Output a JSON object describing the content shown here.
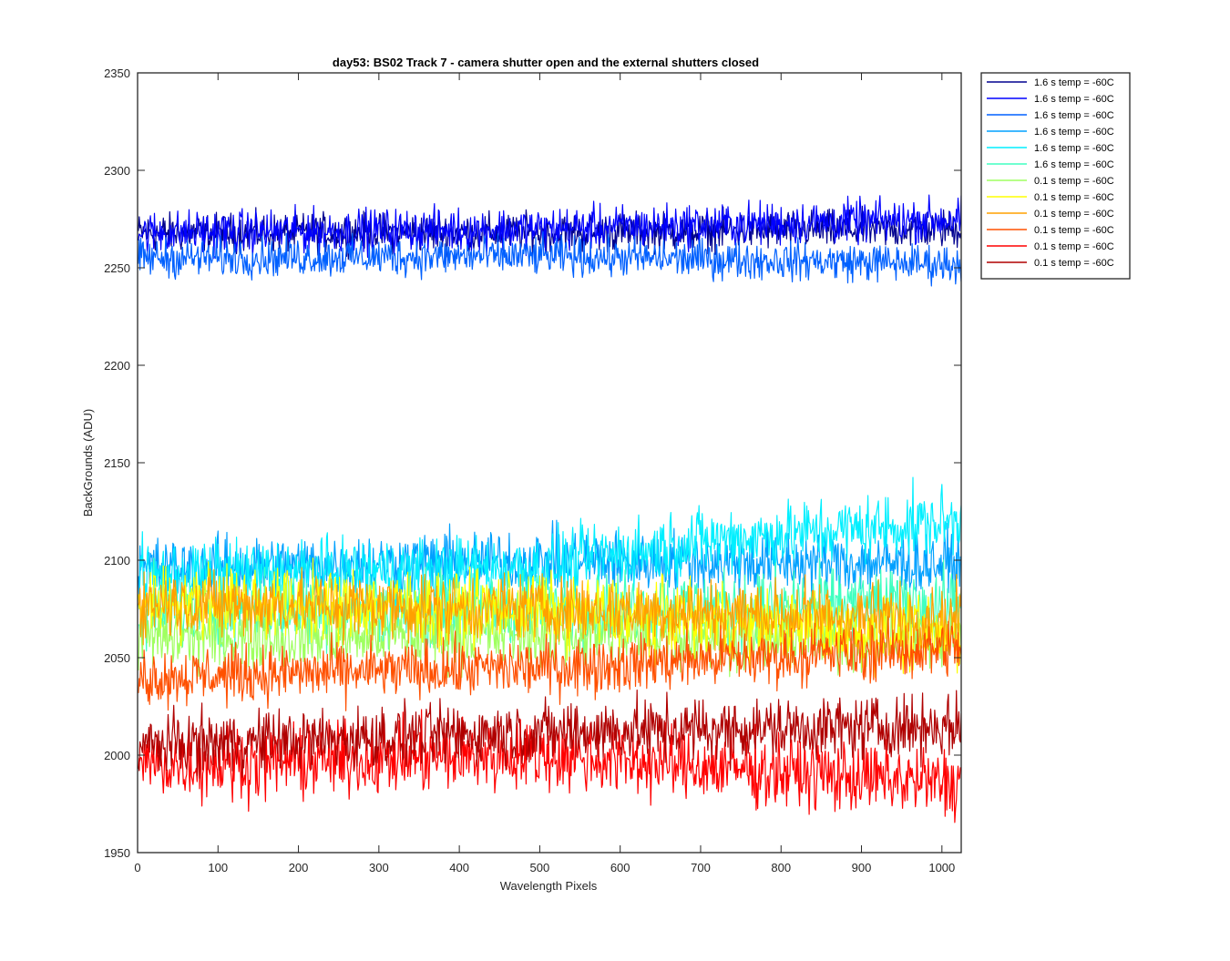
{
  "chart_data": {
    "type": "line",
    "title": "day53: BS02  Track 7 - camera shutter open and the external shutters closed",
    "xlabel": "Wavelength Pixels",
    "ylabel": "BackGrounds (ADU)",
    "xlim": [
      0,
      1024
    ],
    "ylim": [
      1950,
      2350
    ],
    "xticks": [
      0,
      100,
      200,
      300,
      400,
      500,
      600,
      700,
      800,
      900,
      1000
    ],
    "yticks": [
      1950,
      2000,
      2050,
      2100,
      2150,
      2200,
      2250,
      2300,
      2350
    ],
    "grid": false,
    "legend_position": "outside-right-top",
    "x": "pixel index 1..1024",
    "series": [
      {
        "name": "1.6 s temp = -60C",
        "color": "#00008F",
        "baseline": [
          [
            0,
            2268
          ],
          [
            500,
            2268
          ],
          [
            1024,
            2270
          ]
        ],
        "noise_amplitude": 8
      },
      {
        "name": "1.6 s temp = -60C",
        "color": "#0000FF",
        "baseline": [
          [
            0,
            2268
          ],
          [
            500,
            2270
          ],
          [
            1024,
            2275
          ]
        ],
        "noise_amplitude": 9
      },
      {
        "name": "1.6 s temp = -60C",
        "color": "#0060FF",
        "baseline": [
          [
            0,
            2255
          ],
          [
            500,
            2256
          ],
          [
            1024,
            2252
          ]
        ],
        "noise_amplitude": 8
      },
      {
        "name": "1.6 s temp = -60C",
        "color": "#00A0FF",
        "baseline": [
          [
            0,
            2095
          ],
          [
            500,
            2100
          ],
          [
            1024,
            2098
          ]
        ],
        "noise_amplitude": 13
      },
      {
        "name": "1.6 s temp = -60C",
        "color": "#00EFFF",
        "baseline": [
          [
            0,
            2092
          ],
          [
            500,
            2096
          ],
          [
            700,
            2110
          ],
          [
            1024,
            2120
          ]
        ],
        "noise_amplitude": 14
      },
      {
        "name": "1.6 s temp = -60C",
        "color": "#40FFC0",
        "baseline": [
          [
            0,
            2075
          ],
          [
            500,
            2075
          ],
          [
            1024,
            2078
          ]
        ],
        "noise_amplitude": 15
      },
      {
        "name": "0.1 s temp = -60C",
        "color": "#9FFF60",
        "baseline": [
          [
            0,
            2060
          ],
          [
            500,
            2062
          ],
          [
            1024,
            2060
          ]
        ],
        "noise_amplitude": 14
      },
      {
        "name": "0.1 s temp = -60C",
        "color": "#FFFF00",
        "baseline": [
          [
            0,
            2080
          ],
          [
            500,
            2075
          ],
          [
            1024,
            2060
          ]
        ],
        "noise_amplitude": 15
      },
      {
        "name": "0.1 s temp = -60C",
        "color": "#FFA000",
        "baseline": [
          [
            0,
            2078
          ],
          [
            500,
            2075
          ],
          [
            1024,
            2070
          ]
        ],
        "noise_amplitude": 14
      },
      {
        "name": "0.1 s temp = -60C",
        "color": "#FF5000",
        "baseline": [
          [
            0,
            2040
          ],
          [
            500,
            2045
          ],
          [
            1024,
            2055
          ]
        ],
        "noise_amplitude": 12
      },
      {
        "name": "0.1 s temp = -60C",
        "color": "#FF0000",
        "baseline": [
          [
            0,
            1995
          ],
          [
            500,
            2000
          ],
          [
            1024,
            1985
          ]
        ],
        "noise_amplitude": 15
      },
      {
        "name": "0.1 s temp = -60C",
        "color": "#B00000",
        "baseline": [
          [
            0,
            2005
          ],
          [
            500,
            2012
          ],
          [
            1024,
            2015
          ]
        ],
        "noise_amplitude": 13
      }
    ]
  }
}
